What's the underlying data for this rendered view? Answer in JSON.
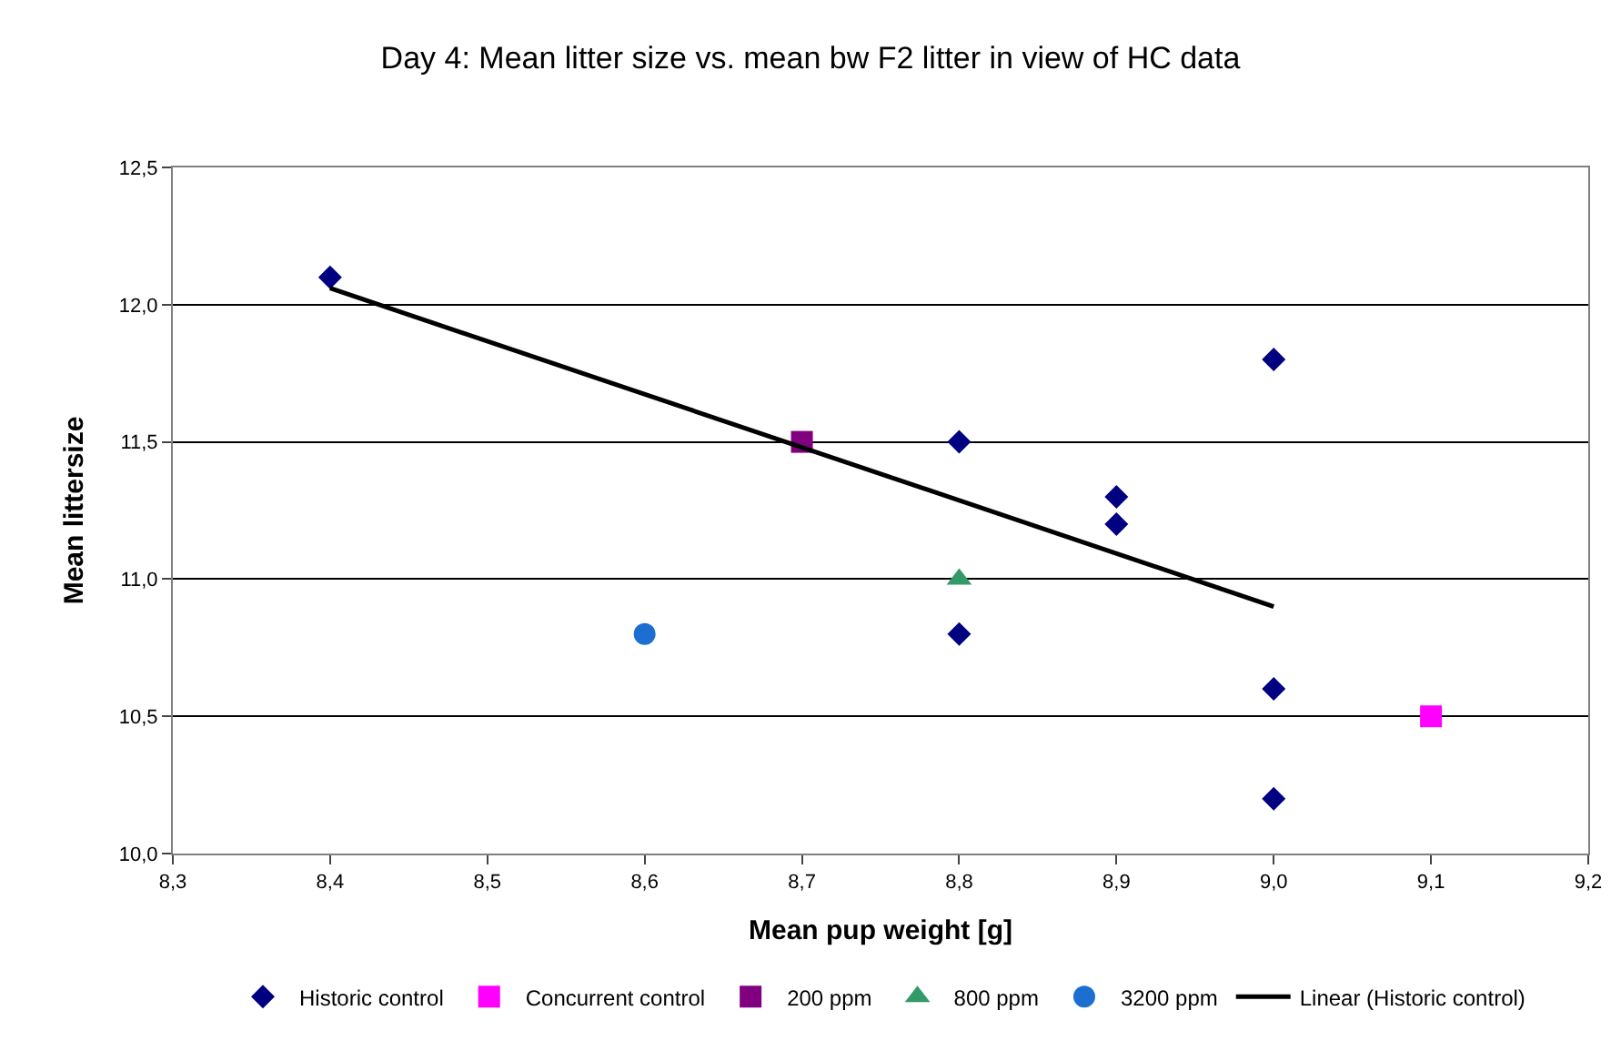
{
  "chart_data": {
    "type": "scatter",
    "title": "Day 4: Mean litter size vs. mean bw F2 litter in view of HC data",
    "xlabel": "Mean pup weight [g]",
    "ylabel": "Mean littersize",
    "series": [
      {
        "name": "Historic control",
        "color": "#000080",
        "marker": "diamond",
        "x": [
          8.4,
          8.8,
          8.8,
          8.9,
          8.9,
          9.0,
          9.0,
          9.0
        ],
        "values": [
          12.1,
          11.5,
          10.8,
          11.3,
          11.2,
          11.8,
          10.6,
          10.2
        ]
      },
      {
        "name": "Concurrent control",
        "color": "#ff00ff",
        "marker": "square",
        "x": [
          9.1
        ],
        "values": [
          10.5
        ]
      },
      {
        "name": "200 ppm",
        "color": "#800080",
        "marker": "square",
        "x": [
          8.7
        ],
        "values": [
          11.5
        ]
      },
      {
        "name": "800 ppm",
        "color": "#339966",
        "marker": "triangle",
        "x": [
          8.8
        ],
        "values": [
          11.0
        ]
      },
      {
        "name": "3200 ppm",
        "color": "#1c6fd0",
        "marker": "circle",
        "x": [
          8.6
        ],
        "values": [
          10.8
        ]
      },
      {
        "name": "Linear (Historic control)",
        "type": "line",
        "color": "#000000",
        "marker": "none",
        "x": [
          8.4,
          9.0
        ],
        "values": [
          12.06,
          10.9
        ]
      }
    ],
    "xlim": [
      8.3,
      9.2
    ],
    "xticks": [
      {
        "value": 8.3,
        "label": "8,3"
      },
      {
        "value": 8.4,
        "label": "8,4"
      },
      {
        "value": 8.5,
        "label": "8,5"
      },
      {
        "value": 8.6,
        "label": "8,6"
      },
      {
        "value": 8.7,
        "label": "8,7"
      },
      {
        "value": 8.8,
        "label": "8,8"
      },
      {
        "value": 8.9,
        "label": "8,9"
      },
      {
        "value": 9.0,
        "label": "9,0"
      },
      {
        "value": 9.1,
        "label": "9,1"
      },
      {
        "value": 9.2,
        "label": "9,2"
      }
    ],
    "ylim": [
      10.0,
      12.5
    ],
    "yticks": [
      {
        "value": 10.0,
        "label": "10,0"
      },
      {
        "value": 10.5,
        "label": "10,5"
      },
      {
        "value": 11.0,
        "label": "11,0"
      },
      {
        "value": 11.5,
        "label": "11,5"
      },
      {
        "value": 12.0,
        "label": "12,0"
      },
      {
        "value": 12.5,
        "label": "12,5"
      }
    ],
    "grid": "y",
    "legend": "bottom"
  }
}
